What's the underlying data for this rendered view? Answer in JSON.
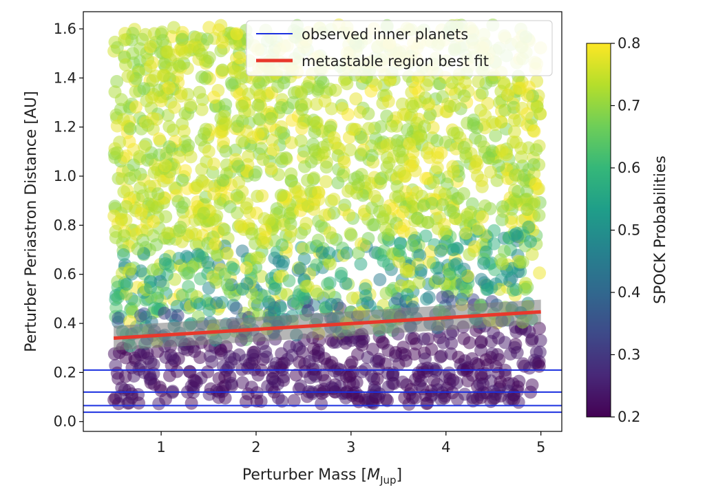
{
  "chart_data": {
    "type": "scatter",
    "xlabel_main": "Perturber Mass [",
    "xlabel_sym": "M",
    "xlabel_sub": "Jup",
    "xlabel_end": "]",
    "ylabel": "Perturber Periastron Distance [AU]",
    "xlim": [
      0.18,
      5.22
    ],
    "ylim": [
      -0.04,
      1.67
    ],
    "xticks": [
      1,
      2,
      3,
      4,
      5
    ],
    "yticks": [
      0.0,
      0.2,
      0.4,
      0.6,
      0.8,
      1.0,
      1.2,
      1.4,
      1.6
    ],
    "grid": false,
    "scatter": {
      "x_range": [
        0.5,
        5.0
      ],
      "y_range": [
        0.07,
        1.62
      ],
      "color_variable": "SPOCK Probabilities",
      "point_alpha": 0.5
    },
    "observed_inner_planets": [
      0.21,
      0.12,
      0.065,
      0.038
    ],
    "best_fit": {
      "x": [
        0.5,
        5.0
      ],
      "y": [
        0.34,
        0.447
      ],
      "band_halfwidth": 0.05
    },
    "legend": {
      "placement": "top-right",
      "entries": [
        {
          "label": "observed inner planets",
          "color": "#1a2fe0"
        },
        {
          "label": "metastable region best fit",
          "color": "#e8382b"
        }
      ]
    },
    "colorbar": {
      "label": "SPOCK Probabilities",
      "range": [
        0.2,
        0.8
      ],
      "ticks": [
        "0.2",
        "0.3",
        "0.4",
        "0.5",
        "0.6",
        "0.7",
        "0.8"
      ],
      "colormap": "viridis",
      "colors": [
        "#440154",
        "#482878",
        "#3e4a89",
        "#31688e",
        "#26828e",
        "#1f9e89",
        "#35b779",
        "#6ece58",
        "#b5de2b",
        "#fde725"
      ]
    }
  }
}
